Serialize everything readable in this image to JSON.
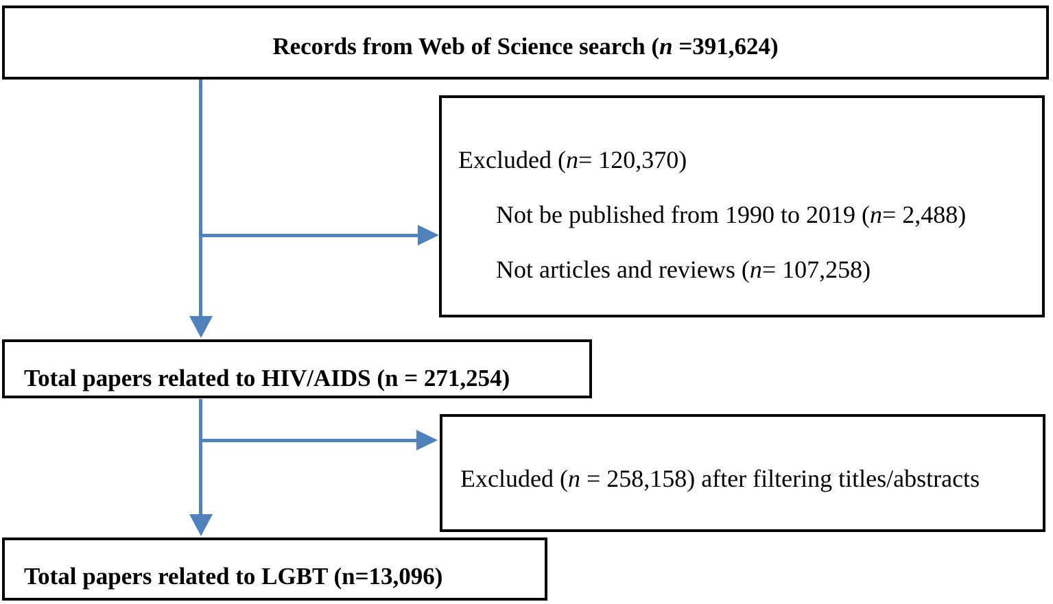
{
  "flowchart": {
    "arrow_color": "#4f81bd",
    "border_color": "#000000",
    "nodes": {
      "records": {
        "prefix": "Records from Web of Science search (",
        "n_var": "n",
        "suffix": " =391,624)"
      },
      "excluded_first": {
        "line1": {
          "prefix": "Excluded (",
          "n_var": "n",
          "suffix": " = 120,370)"
        },
        "line2": {
          "prefix": "Not be published from 1990 to 2019 (",
          "n_var": "n",
          "suffix": " = 2,488)"
        },
        "line3": {
          "prefix": "Not articles and reviews (",
          "n_var": "n",
          "suffix": " = 107,258)"
        }
      },
      "hiv_total": {
        "label": "Total papers related to HIV/AIDS (n = 271,254)"
      },
      "excluded_second": {
        "prefix": "Excluded (",
        "n_var": "n",
        "suffix": " = 258,158) after filtering titles/abstracts"
      },
      "lgbt_total": {
        "label": "Total papers related to LGBT (n=13,096)"
      }
    }
  }
}
